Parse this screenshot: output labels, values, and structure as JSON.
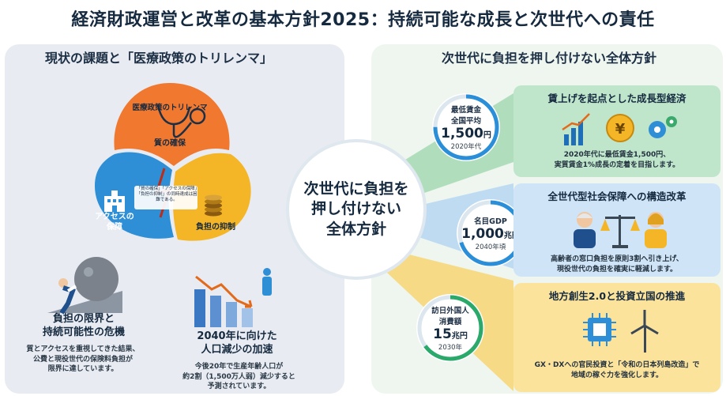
{
  "title": "経済財政運営と改革の基本方針2025：持続可能な成長と次世代への責任",
  "left": {
    "heading": "現状の課題と「医療政策のトリレンマ」",
    "puzzle": {
      "arc_title": "医療政策のトリレンマ",
      "quality": "質の確保",
      "access": "アクセスの\n保障",
      "burden": "負担の抑制",
      "note": "「質の確保」「アクセスの保障」「負担の抑制」の同時達成は困難である。"
    },
    "crisis": {
      "title": "負担の限界と\n持続可能性の危機",
      "desc": "質とアクセスを重視してきた結果、\n公費と現役世代の保険料負担が\n限界に達しています。"
    },
    "population": {
      "title": "2040年に向けた\n人口減少の加速",
      "desc": "今後20年で生産年齢人口が\n約2割（1,500万人弱）減少すると\n予測されています。"
    }
  },
  "center": {
    "text": "次世代に負担を\n押し付けない\n全体方針"
  },
  "right": {
    "heading": "次世代に負担を押し付けない全体方針",
    "stats": [
      {
        "label": "最低賃金\n全国平均",
        "value": "1,500",
        "unit": "円",
        "year": "2020年代",
        "color": "#2a8fd8",
        "progress": 0.75
      },
      {
        "label": "名目GDP",
        "value": "1,000",
        "unit": "兆円",
        "year": "2040年頃",
        "color": "#2a8fd8",
        "progress": 0.7
      },
      {
        "label": "訪日外国人\n消費額",
        "value": "15",
        "unit": "兆円",
        "year": "2030年",
        "color": "#2aa96b",
        "progress": 0.65
      }
    ],
    "cards": [
      {
        "title": "賃上げを起点とした成長型経済",
        "desc": "2020年代に最低賃金1,500円、\n実質賃金1%成長の定着を目指します。",
        "color": "#bfe6cb"
      },
      {
        "title": "全世代型社会保障への構造改革",
        "desc": "高齢者の窓口負担を原則3割へ引き上げ、\n現役世代の負担を確実に軽減します。",
        "color": "#cfe4f7"
      },
      {
        "title": "地方創生2.0と投資立国の推進",
        "desc": "GX・DXへの官民投資と「令和の日本列島改造」で\n地域の稼ぐ力を強化します。",
        "color": "#fbe39c"
      }
    ],
    "yen_symbol": "¥"
  },
  "colors": {
    "orange": "#f0782f",
    "blue": "#2f8fd6",
    "yellow": "#f4b527",
    "green": "#3aa96b"
  }
}
